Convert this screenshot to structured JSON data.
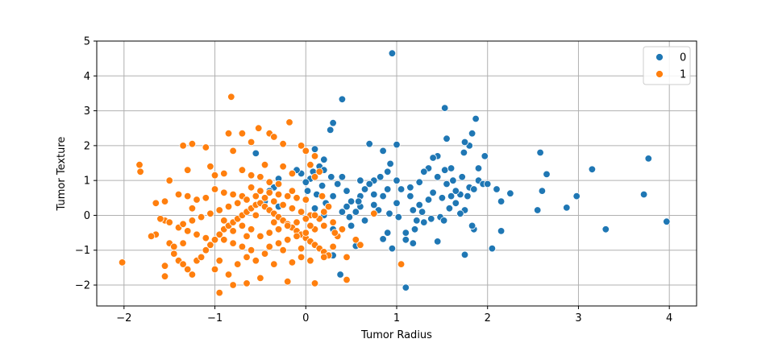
{
  "chart_data": {
    "type": "scatter",
    "title": "",
    "xlabel": "Tumor Radius",
    "ylabel": "Tumor Texture",
    "xlim": [
      -2.3,
      4.3
    ],
    "ylim": [
      -2.6,
      5.0
    ],
    "xticks": [
      -2,
      -1,
      0,
      1,
      2,
      3,
      4
    ],
    "yticks": [
      -2,
      -1,
      0,
      1,
      2,
      3,
      4,
      5
    ],
    "grid": true,
    "legend_position": "top-right",
    "series": [
      {
        "name": "0",
        "color": "#1f77b4",
        "points": [
          [
            0.95,
            4.65
          ],
          [
            0.4,
            3.33
          ],
          [
            1.53,
            3.08
          ],
          [
            1.87,
            2.77
          ],
          [
            1.83,
            2.35
          ],
          [
            1.8,
            2.0
          ],
          [
            1.75,
            2.1
          ],
          [
            1.74,
            1.8
          ],
          [
            1.97,
            1.7
          ],
          [
            1.55,
            2.2
          ],
          [
            1.45,
            1.7
          ],
          [
            1.4,
            1.65
          ],
          [
            1.35,
            1.35
          ],
          [
            1.53,
            1.3
          ],
          [
            1.6,
            1.35
          ],
          [
            1.72,
            1.1
          ],
          [
            1.9,
            1.0
          ],
          [
            1.95,
            0.9
          ],
          [
            1.8,
            0.8
          ],
          [
            2.1,
            0.75
          ],
          [
            2.25,
            0.63
          ],
          [
            2.15,
            0.4
          ],
          [
            2.6,
            0.7
          ],
          [
            2.58,
            1.8
          ],
          [
            2.65,
            1.18
          ],
          [
            2.55,
            0.15
          ],
          [
            2.87,
            0.22
          ],
          [
            2.98,
            0.55
          ],
          [
            3.15,
            1.32
          ],
          [
            3.3,
            -0.4
          ],
          [
            3.72,
            0.6
          ],
          [
            3.77,
            1.63
          ],
          [
            3.97,
            -0.18
          ],
          [
            2.05,
            -0.95
          ],
          [
            2.15,
            -0.45
          ],
          [
            1.85,
            -0.4
          ],
          [
            1.83,
            -0.3
          ],
          [
            1.75,
            -1.13
          ],
          [
            1.45,
            -0.75
          ],
          [
            1.2,
            -0.4
          ],
          [
            1.1,
            -0.5
          ],
          [
            1.1,
            -0.7
          ],
          [
            0.9,
            -0.5
          ],
          [
            0.95,
            -0.95
          ],
          [
            0.85,
            -0.68
          ],
          [
            1.1,
            -2.07
          ],
          [
            0.55,
            -0.88
          ],
          [
            0.5,
            -0.3
          ],
          [
            0.3,
            -0.4
          ],
          [
            0.3,
            -1.15
          ],
          [
            0.38,
            -1.7
          ],
          [
            1.0,
            2.03
          ],
          [
            0.7,
            2.05
          ],
          [
            0.85,
            1.85
          ],
          [
            0.93,
            1.48
          ],
          [
            0.9,
            1.25
          ],
          [
            0.82,
            1.1
          ],
          [
            0.75,
            1.0
          ],
          [
            0.7,
            0.9
          ],
          [
            0.65,
            0.75
          ],
          [
            0.6,
            0.55
          ],
          [
            0.5,
            0.4
          ],
          [
            0.45,
            0.25
          ],
          [
            0.4,
            0.1
          ],
          [
            0.3,
            2.65
          ],
          [
            0.27,
            2.45
          ],
          [
            0.2,
            1.6
          ],
          [
            0.15,
            1.4
          ],
          [
            0.1,
            1.9
          ],
          [
            0.08,
            1.25
          ],
          [
            0.05,
            1.05
          ],
          [
            0.0,
            0.95
          ],
          [
            0.02,
            0.7
          ],
          [
            0.0,
            0.45
          ],
          [
            0.1,
            0.2
          ],
          [
            0.2,
            0.0
          ],
          [
            -0.05,
            1.2
          ],
          [
            -0.1,
            1.3
          ],
          [
            -0.3,
            1.05
          ],
          [
            -0.35,
            0.8
          ],
          [
            -0.4,
            0.7
          ],
          [
            -0.55,
            1.78
          ],
          [
            -0.45,
            0.4
          ],
          [
            -0.3,
            0.25
          ],
          [
            1.0,
            0.35
          ],
          [
            1.05,
            0.75
          ],
          [
            1.15,
            0.55
          ],
          [
            1.25,
            0.3
          ],
          [
            1.28,
            0.1
          ],
          [
            1.3,
            -0.2
          ],
          [
            1.35,
            0.45
          ],
          [
            1.4,
            0.65
          ],
          [
            1.5,
            0.5
          ],
          [
            1.55,
            0.9
          ],
          [
            1.6,
            0.55
          ],
          [
            1.65,
            0.35
          ],
          [
            1.7,
            0.6
          ],
          [
            1.75,
            0.15
          ],
          [
            1.78,
            0.55
          ],
          [
            1.85,
            0.75
          ],
          [
            1.9,
            1.35
          ],
          [
            2.0,
            0.9
          ],
          [
            1.62,
            1.0
          ],
          [
            1.58,
            0.2
          ],
          [
            1.48,
            -0.05
          ],
          [
            1.38,
            -0.1
          ],
          [
            1.22,
            -0.15
          ],
          [
            1.18,
            0.15
          ],
          [
            0.92,
            0.05
          ],
          [
            0.8,
            0.15
          ],
          [
            0.75,
            0.3
          ],
          [
            0.6,
            0.25
          ],
          [
            0.55,
            0.1
          ],
          [
            0.45,
            0.7
          ],
          [
            0.35,
            0.9
          ],
          [
            0.28,
            1.1
          ],
          [
            0.18,
            0.85
          ],
          [
            0.12,
            0.6
          ],
          [
            0.4,
            1.1
          ],
          [
            0.6,
            1.0
          ],
          [
            0.2,
            1.3
          ],
          [
            0.85,
            0.55
          ],
          [
            1.0,
            1.0
          ],
          [
            1.15,
            0.8
          ],
          [
            1.25,
            0.95
          ],
          [
            1.45,
            1.1
          ],
          [
            1.65,
            0.7
          ],
          [
            1.7,
            0.05
          ],
          [
            1.52,
            -0.15
          ],
          [
            1.18,
            -0.8
          ],
          [
            0.75,
            0.6
          ],
          [
            0.65,
            -0.15
          ],
          [
            0.3,
            0.55
          ],
          [
            0.22,
            0.35
          ],
          [
            0.48,
            -0.05
          ],
          [
            0.58,
            0.4
          ],
          [
            0.9,
            0.75
          ],
          [
            1.3,
            1.25
          ],
          [
            1.02,
            -0.05
          ]
        ]
      },
      {
        "name": "1",
        "color": "#ff7f0e",
        "points": [
          [
            -0.82,
            3.4
          ],
          [
            -0.18,
            2.67
          ],
          [
            -0.52,
            2.5
          ],
          [
            -0.4,
            2.35
          ],
          [
            -0.35,
            2.25
          ],
          [
            -0.25,
            2.05
          ],
          [
            -0.85,
            2.35
          ],
          [
            -0.7,
            2.35
          ],
          [
            -0.6,
            2.1
          ],
          [
            -0.05,
            2.0
          ],
          [
            0.0,
            1.85
          ],
          [
            -0.8,
            1.85
          ],
          [
            -1.1,
            1.95
          ],
          [
            -1.25,
            2.05
          ],
          [
            -1.35,
            2.0
          ],
          [
            -1.83,
            1.45
          ],
          [
            -1.82,
            1.25
          ],
          [
            -1.5,
            1.0
          ],
          [
            -1.3,
            1.3
          ],
          [
            -1.05,
            1.4
          ],
          [
            -1.0,
            1.15
          ],
          [
            -0.9,
            1.2
          ],
          [
            -0.7,
            1.3
          ],
          [
            -0.6,
            1.15
          ],
          [
            -0.5,
            1.1
          ],
          [
            -0.4,
            0.95
          ],
          [
            -0.25,
            1.4
          ],
          [
            -0.15,
            1.2
          ],
          [
            0.1,
            1.1
          ],
          [
            0.15,
            1.25
          ],
          [
            -1.65,
            0.35
          ],
          [
            -1.55,
            0.4
          ],
          [
            -1.4,
            0.6
          ],
          [
            -1.3,
            0.55
          ],
          [
            -1.2,
            0.45
          ],
          [
            -1.1,
            0.5
          ],
          [
            -1.0,
            0.75
          ],
          [
            -0.9,
            0.65
          ],
          [
            -0.8,
            0.6
          ],
          [
            -0.7,
            0.55
          ],
          [
            -0.6,
            0.8
          ],
          [
            -0.5,
            0.7
          ],
          [
            -0.4,
            0.65
          ],
          [
            -0.3,
            0.6
          ],
          [
            -0.2,
            0.55
          ],
          [
            -0.1,
            0.5
          ],
          [
            0.0,
            0.45
          ],
          [
            -2.02,
            -1.35
          ],
          [
            -1.65,
            -0.55
          ],
          [
            -1.55,
            -0.15
          ],
          [
            -1.5,
            -0.8
          ],
          [
            -1.45,
            -1.1
          ],
          [
            -1.4,
            -1.3
          ],
          [
            -1.35,
            -1.4
          ],
          [
            -1.3,
            -1.55
          ],
          [
            -1.25,
            -1.7
          ],
          [
            -1.55,
            -1.75
          ],
          [
            -1.55,
            -1.45
          ],
          [
            -1.2,
            -1.3
          ],
          [
            -1.15,
            -1.2
          ],
          [
            -1.1,
            -1.0
          ],
          [
            -1.05,
            -0.85
          ],
          [
            -1.0,
            -0.7
          ],
          [
            -0.95,
            -0.55
          ],
          [
            -0.9,
            -0.4
          ],
          [
            -0.85,
            -0.3
          ],
          [
            -0.8,
            -0.2
          ],
          [
            -0.75,
            -0.1
          ],
          [
            -0.7,
            0.0
          ],
          [
            -0.65,
            0.1
          ],
          [
            -0.6,
            0.2
          ],
          [
            -0.55,
            0.3
          ],
          [
            -0.5,
            0.35
          ],
          [
            -0.45,
            0.25
          ],
          [
            -0.4,
            0.15
          ],
          [
            -0.35,
            0.05
          ],
          [
            -0.3,
            -0.05
          ],
          [
            -0.25,
            -0.15
          ],
          [
            -0.2,
            -0.25
          ],
          [
            -0.15,
            -0.35
          ],
          [
            -0.1,
            -0.45
          ],
          [
            -0.05,
            -0.55
          ],
          [
            0.0,
            -0.65
          ],
          [
            0.05,
            -0.75
          ],
          [
            0.1,
            -0.85
          ],
          [
            0.15,
            -0.95
          ],
          [
            0.2,
            -1.05
          ],
          [
            0.25,
            -1.15
          ],
          [
            0.3,
            -0.9
          ],
          [
            0.35,
            -0.6
          ],
          [
            0.4,
            -0.4
          ],
          [
            0.45,
            -1.2
          ],
          [
            0.45,
            -1.85
          ],
          [
            0.1,
            -1.95
          ],
          [
            -0.2,
            -1.9
          ],
          [
            -0.5,
            -1.8
          ],
          [
            -0.65,
            -1.95
          ],
          [
            -0.8,
            -2.0
          ],
          [
            -0.95,
            -2.22
          ],
          [
            -0.85,
            -1.7
          ],
          [
            -1.0,
            -1.55
          ],
          [
            -0.75,
            -1.4
          ],
          [
            -0.55,
            -1.3
          ],
          [
            -0.35,
            -1.4
          ],
          [
            -0.15,
            -1.35
          ],
          [
            0.05,
            -1.3
          ],
          [
            0.2,
            -1.2
          ],
          [
            -0.45,
            -1.1
          ],
          [
            -0.6,
            -1.0
          ],
          [
            -0.7,
            -0.9
          ],
          [
            -0.8,
            -0.8
          ],
          [
            -0.9,
            -0.7
          ],
          [
            -1.1,
            -0.65
          ],
          [
            -1.2,
            -0.55
          ],
          [
            -1.3,
            -0.45
          ],
          [
            -1.4,
            -0.35
          ],
          [
            -1.5,
            -0.2
          ],
          [
            -1.6,
            -0.1
          ],
          [
            -0.3,
            -0.8
          ],
          [
            -0.2,
            -0.7
          ],
          [
            -0.1,
            -0.6
          ],
          [
            0.0,
            -0.5
          ],
          [
            0.1,
            -0.4
          ],
          [
            0.2,
            -0.3
          ],
          [
            0.3,
            -0.2
          ],
          [
            0.15,
            -0.1
          ],
          [
            0.05,
            0.0
          ],
          [
            -0.05,
            0.1
          ],
          [
            -0.15,
            0.2
          ],
          [
            -0.25,
            0.3
          ],
          [
            -0.35,
            0.4
          ],
          [
            -0.45,
            0.5
          ],
          [
            -0.55,
            0.55
          ],
          [
            -0.65,
            0.45
          ],
          [
            -0.75,
            0.35
          ],
          [
            -0.85,
            0.25
          ],
          [
            -0.95,
            0.15
          ],
          [
            -1.05,
            0.05
          ],
          [
            -1.15,
            -0.05
          ],
          [
            -1.25,
            -0.15
          ],
          [
            -1.35,
            -0.25
          ],
          [
            -0.5,
            -0.6
          ],
          [
            -0.4,
            -0.5
          ],
          [
            -0.3,
            -0.4
          ],
          [
            -0.2,
            -0.3
          ],
          [
            -0.1,
            -0.2
          ],
          [
            0.0,
            -0.1
          ],
          [
            0.1,
            0.0
          ],
          [
            0.2,
            0.1
          ],
          [
            -0.6,
            -0.4
          ],
          [
            -0.7,
            -0.3
          ],
          [
            -0.8,
            -0.45
          ],
          [
            -0.9,
            -0.15
          ],
          [
            0.55,
            -0.7
          ],
          [
            0.6,
            -0.85
          ],
          [
            0.75,
            0.05
          ],
          [
            1.05,
            -1.4
          ],
          [
            0.1,
            1.7
          ],
          [
            0.05,
            1.45
          ],
          [
            -0.45,
            1.45
          ],
          [
            -1.35,
            -0.8
          ],
          [
            -1.45,
            -0.9
          ],
          [
            -0.95,
            -1.3
          ],
          [
            -0.65,
            -1.2
          ],
          [
            -0.25,
            -1.0
          ],
          [
            -0.05,
            -0.95
          ],
          [
            0.1,
            -1.95
          ],
          [
            -1.7,
            -0.6
          ],
          [
            -1.25,
            0.2
          ],
          [
            -0.3,
            0.9
          ],
          [
            -0.15,
            0.7
          ],
          [
            0.18,
            0.55
          ],
          [
            0.25,
            0.25
          ],
          [
            -0.55,
            0.0
          ],
          [
            -0.65,
            -0.6
          ],
          [
            -0.35,
            -0.2
          ],
          [
            -0.4,
            -0.9
          ],
          [
            -0.05,
            -1.2
          ],
          [
            0.32,
            -0.5
          ],
          [
            0.05,
            -0.3
          ]
        ]
      }
    ]
  },
  "legend": {
    "items": [
      {
        "label": "0",
        "color": "#1f77b4"
      },
      {
        "label": "1",
        "color": "#ff7f0e"
      }
    ]
  }
}
